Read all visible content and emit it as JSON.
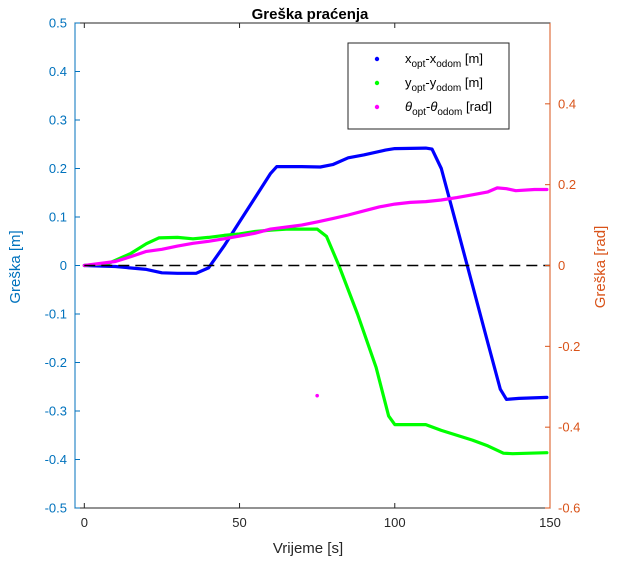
{
  "chart_data": {
    "type": "line",
    "title": "Greška praćenja",
    "xlabel": "Vrijeme [s]",
    "ylabel_left": "Greška [m]",
    "ylabel_right": "Greška [rad]",
    "xlim": [
      -3,
      150
    ],
    "ylim_left": [
      -0.5,
      0.5
    ],
    "ylim_right": [
      -0.6,
      0.6
    ],
    "x_ticks": [
      "0",
      "50",
      "100",
      "150"
    ],
    "y_left_ticks": [
      "-0.5",
      "-0.4",
      "-0.3",
      "-0.2",
      "-0.1",
      "0",
      "0.1",
      "0.2",
      "0.3",
      "0.4",
      "0.5"
    ],
    "y_right_ticks": [
      "-0.6",
      "-0.4",
      "-0.2",
      "0",
      "0.2",
      "0.4"
    ],
    "grid": false,
    "legend_position": "top-right",
    "reference_line": {
      "y": 0,
      "style": "dashed",
      "color": "#000000"
    },
    "colors": {
      "left_axis": "#0072BD",
      "right_axis": "#D95319"
    },
    "legend": [
      {
        "main": "x",
        "sub": "opt",
        "dash": "-",
        "main2": "x",
        "sub2": "odom",
        "unit": " [m]",
        "color": "#0000FF"
      },
      {
        "main": "y",
        "sub": "opt",
        "dash": "-",
        "main2": "y",
        "sub2": "odom",
        "unit": " [m]",
        "color": "#00FF00"
      },
      {
        "main": "θ",
        "sub": "opt",
        "dash": "-",
        "main2": "θ",
        "sub2": "odom",
        "unit": " [rad]",
        "color": "#FF00FF"
      }
    ],
    "series": [
      {
        "name": "x_opt - x_odom [m]",
        "axis": "left",
        "color": "#0000FF",
        "points": [
          [
            0,
            0
          ],
          [
            10,
            -0.002
          ],
          [
            20,
            -0.008
          ],
          [
            25,
            -0.015
          ],
          [
            30,
            -0.016
          ],
          [
            36,
            -0.016
          ],
          [
            40,
            -0.005
          ],
          [
            45,
            0.04
          ],
          [
            50,
            0.09
          ],
          [
            55,
            0.14
          ],
          [
            60,
            0.19
          ],
          [
            62,
            0.204
          ],
          [
            70,
            0.204
          ],
          [
            76,
            0.203
          ],
          [
            80,
            0.208
          ],
          [
            85,
            0.222
          ],
          [
            90,
            0.228
          ],
          [
            97,
            0.238
          ],
          [
            100,
            0.241
          ],
          [
            110,
            0.242
          ],
          [
            112,
            0.24
          ],
          [
            115,
            0.2
          ],
          [
            120,
            0.08
          ],
          [
            125,
            -0.04
          ],
          [
            130,
            -0.16
          ],
          [
            134,
            -0.255
          ],
          [
            136,
            -0.276
          ],
          [
            140,
            -0.274
          ],
          [
            149,
            -0.272
          ]
        ]
      },
      {
        "name": "y_opt - y_odom [m]",
        "axis": "left",
        "color": "#00FF00",
        "points": [
          [
            0,
            0
          ],
          [
            8,
            0.005
          ],
          [
            15,
            0.025
          ],
          [
            20,
            0.045
          ],
          [
            24,
            0.057
          ],
          [
            30,
            0.058
          ],
          [
            35,
            0.055
          ],
          [
            40,
            0.058
          ],
          [
            45,
            0.062
          ],
          [
            50,
            0.065
          ],
          [
            55,
            0.07
          ],
          [
            60,
            0.073
          ],
          [
            65,
            0.075
          ],
          [
            75,
            0.075
          ],
          [
            78,
            0.06
          ],
          [
            82,
            0.0
          ],
          [
            88,
            -0.1
          ],
          [
            94,
            -0.21
          ],
          [
            98,
            -0.31
          ],
          [
            100,
            -0.328
          ],
          [
            110,
            -0.328
          ],
          [
            115,
            -0.34
          ],
          [
            125,
            -0.36
          ],
          [
            130,
            -0.372
          ],
          [
            135,
            -0.387
          ],
          [
            138,
            -0.388
          ],
          [
            149,
            -0.386
          ]
        ]
      },
      {
        "name": "θ_opt - θ_odom [rad]",
        "axis": "right",
        "color": "#FF00FF",
        "points": [
          [
            0,
            0
          ],
          [
            5,
            0.005
          ],
          [
            10,
            0.01
          ],
          [
            15,
            0.022
          ],
          [
            20,
            0.035
          ],
          [
            25,
            0.04
          ],
          [
            30,
            0.048
          ],
          [
            35,
            0.055
          ],
          [
            40,
            0.06
          ],
          [
            45,
            0.066
          ],
          [
            50,
            0.073
          ],
          [
            55,
            0.08
          ],
          [
            60,
            0.09
          ],
          [
            65,
            0.095
          ],
          [
            70,
            0.1
          ],
          [
            75,
            0.108
          ],
          [
            80,
            0.116
          ],
          [
            85,
            0.125
          ],
          [
            90,
            0.135
          ],
          [
            95,
            0.145
          ],
          [
            100,
            0.152
          ],
          [
            105,
            0.156
          ],
          [
            110,
            0.158
          ],
          [
            115,
            0.162
          ],
          [
            120,
            0.168
          ],
          [
            125,
            0.175
          ],
          [
            130,
            0.182
          ],
          [
            133,
            0.192
          ],
          [
            136,
            0.19
          ],
          [
            139,
            0.185
          ],
          [
            145,
            0.188
          ],
          [
            149,
            0.188
          ]
        ]
      }
    ],
    "outliers": [
      {
        "x": 75,
        "y": -0.322,
        "axis": "right",
        "color": "#FF00FF"
      }
    ]
  }
}
